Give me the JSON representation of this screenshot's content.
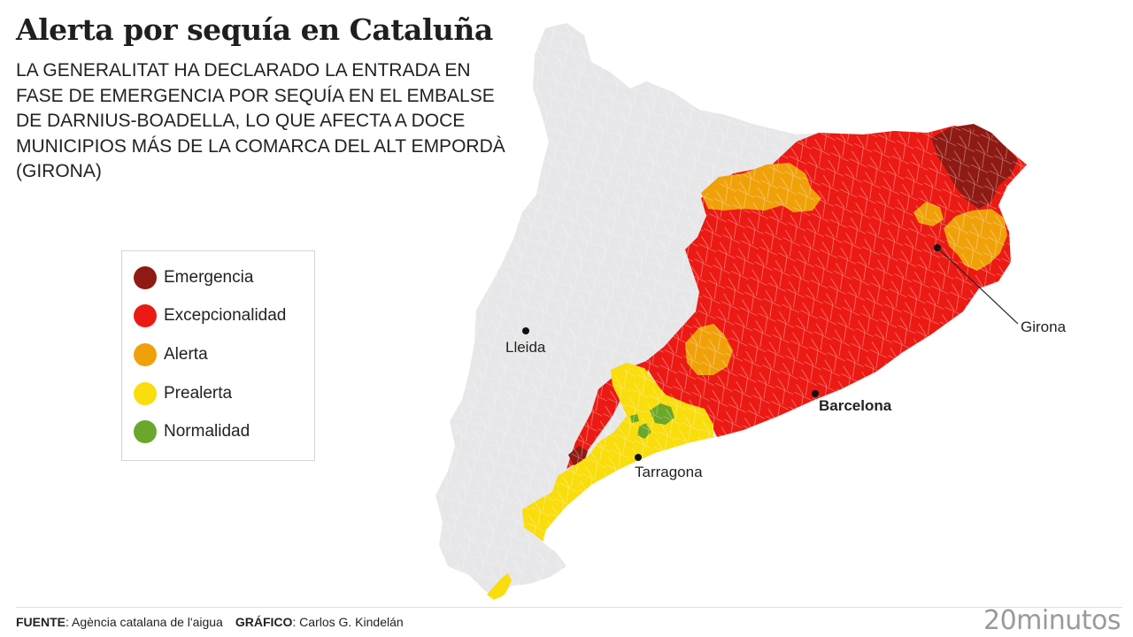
{
  "title": "Alerta por sequía en Cataluña",
  "subtitle": "LA GENERALITAT HA DECLARADO LA ENTRADA EN FASE DE EMERGENCIA POR SEQUÍA EN EL EMBALSE DE DARNIUS-BOADELLA, LO QUE AFECTA A DOCE MUNICIPIOS MÁS DE LA COMARCA DEL ALT EMPORDÀ (GIRONA)",
  "legend": [
    {
      "label": "Emergencia",
      "color": "#8f1a14"
    },
    {
      "label": "Excepcionalidad",
      "color": "#ec1a14"
    },
    {
      "label": "Alerta",
      "color": "#f0a10a"
    },
    {
      "label": "Prealerta",
      "color": "#f9dd0c"
    },
    {
      "label": "Normalidad",
      "color": "#6aa72a"
    }
  ],
  "colors": {
    "no_data": "#e7e7e9",
    "borders": "#ffffff"
  },
  "cities": [
    {
      "name": "Lleida"
    },
    {
      "name": "Barcelona"
    },
    {
      "name": "Tarragona"
    },
    {
      "name": "Girona"
    }
  ],
  "footer": {
    "source_label": "FUENTE",
    "source": "Agència catalana de l'aigua",
    "graphic_label": "GRÁFICO",
    "graphic": "Carlos G. Kindelán"
  },
  "brand": "20minutos"
}
